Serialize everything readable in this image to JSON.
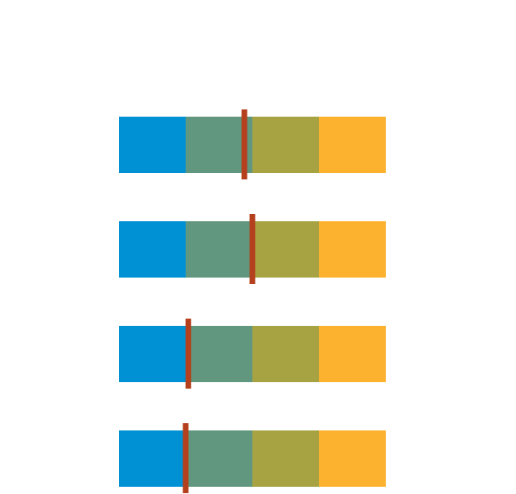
{
  "chart_data": {
    "type": "bullet",
    "xlim": [
      0,
      100
    ],
    "series": [
      {
        "color": "#0090d4",
        "values": [
          25,
          25,
          25,
          25
        ]
      },
      {
        "color": "#61977e",
        "values": [
          25,
          25,
          25,
          25
        ]
      },
      {
        "color": "#a7a342",
        "values": [
          25,
          25,
          25,
          25
        ]
      },
      {
        "color": "#fdb22f",
        "values": [
          25,
          25,
          25,
          25
        ]
      }
    ],
    "markers": {
      "color": "#b5401e",
      "values": [
        47,
        50,
        26,
        25
      ]
    }
  }
}
